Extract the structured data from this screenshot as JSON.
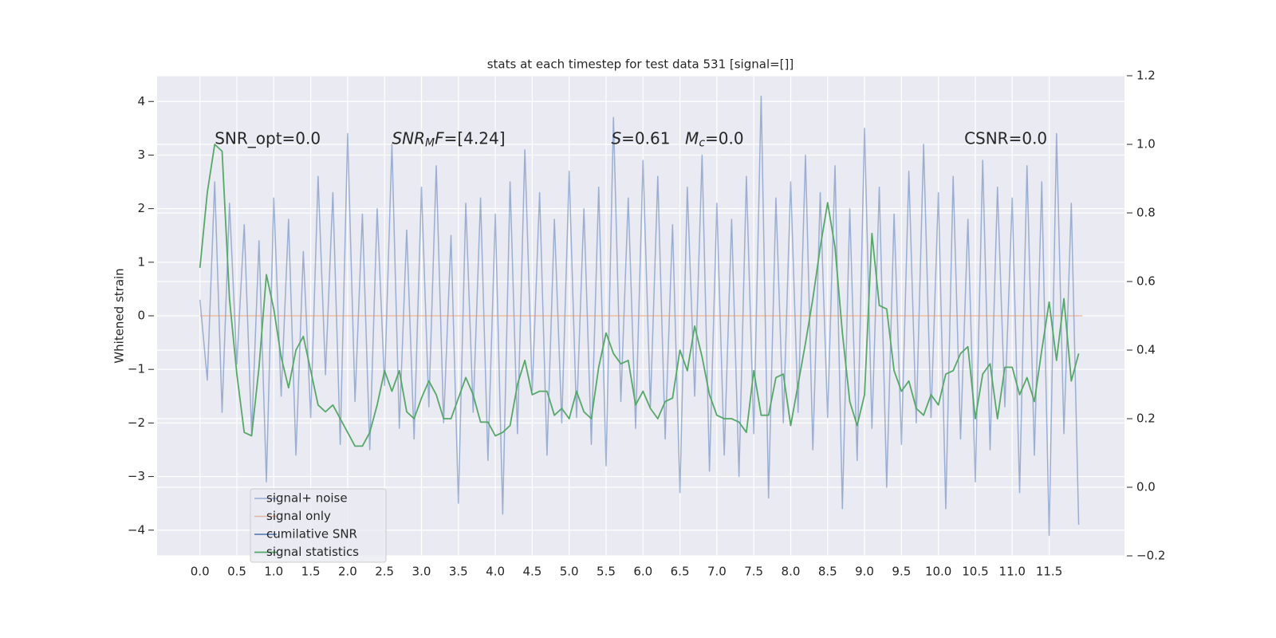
{
  "chart_data": {
    "type": "line",
    "title": "stats at each timestep for test data 531 [signal=[]]",
    "ylabel": "Whitened strain",
    "xlim": [
      -0.58,
      12.52
    ],
    "ylim": [
      -4.48,
      4.48
    ],
    "y2lim": [
      -0.2,
      1.2
    ],
    "xticks": [
      {
        "value": 0,
        "label": "0.0"
      },
      0.5,
      {
        "value": 1,
        "label": "1.0"
      },
      1.5,
      {
        "value": 2,
        "label": "2.0"
      },
      2.5,
      {
        "value": 3,
        "label": "3.0"
      },
      3.5,
      {
        "value": 4,
        "label": "4.0"
      },
      4.5,
      {
        "value": 5,
        "label": "5.0"
      },
      5.5,
      {
        "value": 6,
        "label": "6.0"
      },
      6.5,
      {
        "value": 7,
        "label": "7.0"
      },
      7.5,
      {
        "value": 8,
        "label": "8.0"
      },
      8.5,
      {
        "value": 9,
        "label": "9.0"
      },
      9.5,
      {
        "value": 10,
        "label": "10.0"
      },
      10.5,
      {
        "value": 11,
        "label": "11.0"
      },
      11.5
    ],
    "yticks": [
      {
        "value": -4,
        "label": "−4"
      },
      {
        "value": -3,
        "label": "−3"
      },
      {
        "value": -2,
        "label": "−2"
      },
      {
        "value": -1,
        "label": "−1"
      },
      0,
      1,
      2,
      3,
      4
    ],
    "y2ticks": [
      {
        "value": -0.2,
        "label": "−0.2"
      },
      {
        "value": 0,
        "label": "0.0"
      },
      0.2,
      0.4,
      0.6,
      0.8,
      {
        "value": 1,
        "label": "1.0"
      },
      1.2
    ],
    "grid": true,
    "legend": "lower left",
    "annotations": [
      {
        "x": 0.2,
        "y": 3.3,
        "parts": [
          {
            "text": "SNR_opt=0.0"
          }
        ]
      },
      {
        "x": 2.6,
        "y": 3.3,
        "parts": [
          {
            "text": "SNR",
            "italic": true
          },
          {
            "text": "M",
            "italic": true,
            "sub": true
          },
          {
            "text": "F",
            "italic": true
          },
          {
            "text": "=[4.24]"
          }
        ]
      },
      {
        "x": 5.57,
        "y": 3.3,
        "parts": [
          {
            "text": "S",
            "italic": true
          },
          {
            "text": "=0.61"
          }
        ]
      },
      {
        "x": 6.57,
        "y": 3.3,
        "parts": [
          {
            "text": "M",
            "italic": true
          },
          {
            "text": "c",
            "italic": true,
            "sub": true
          },
          {
            "text": "=0.0"
          }
        ]
      },
      {
        "x": 10.35,
        "y": 3.3,
        "parts": [
          {
            "text": "CSNR=0.0"
          }
        ]
      }
    ],
    "series": [
      {
        "name": "signal+ noise",
        "color": "#4c72b0",
        "alpha": 0.5,
        "width": 1.5,
        "x": [
          0,
          0.1,
          0.2,
          0.3,
          0.4,
          0.5,
          0.6,
          0.7,
          0.8,
          0.9,
          1,
          1.1,
          1.2,
          1.3,
          1.4,
          1.5,
          1.6,
          1.7,
          1.8,
          1.9,
          2,
          2.1,
          2.2,
          2.3,
          2.4,
          2.5,
          2.6,
          2.7,
          2.8,
          2.9,
          3,
          3.1,
          3.2,
          3.3,
          3.4,
          3.5,
          3.6,
          3.7,
          3.8,
          3.9,
          4,
          4.1,
          4.2,
          4.3,
          4.4,
          4.5,
          4.6,
          4.7,
          4.8,
          4.9,
          5,
          5.1,
          5.2,
          5.3,
          5.4,
          5.5,
          5.6,
          5.7,
          5.8,
          5.9,
          6,
          6.1,
          6.2,
          6.3,
          6.4,
          6.5,
          6.6,
          6.7,
          6.8,
          6.9,
          7,
          7.1,
          7.2,
          7.3,
          7.4,
          7.5,
          7.6,
          7.7,
          7.8,
          7.9,
          8,
          8.1,
          8.2,
          8.3,
          8.4,
          8.5,
          8.6,
          8.7,
          8.8,
          8.9,
          9,
          9.1,
          9.2,
          9.3,
          9.4,
          9.5,
          9.6,
          9.7,
          9.8,
          9.9,
          10,
          10.1,
          10.2,
          10.3,
          10.4,
          10.5,
          10.6,
          10.7,
          10.8,
          10.9,
          11,
          11.1,
          11.2,
          11.3,
          11.4,
          11.5,
          11.6,
          11.7,
          11.8,
          11.9
        ],
        "values": [
          0.3,
          -1.2,
          2.5,
          -1.8,
          2.1,
          -0.9,
          1.7,
          -2.2,
          1.4,
          -3.1,
          2.2,
          -1.5,
          1.8,
          -2.6,
          1.2,
          -1.9,
          2.6,
          -1.1,
          2.3,
          -2.4,
          3.4,
          -1.6,
          1.9,
          -2.5,
          2.0,
          -1.3,
          3.2,
          -2.1,
          1.6,
          -2.3,
          2.4,
          -1.7,
          2.8,
          -2.0,
          1.5,
          -3.5,
          2.1,
          -1.8,
          2.2,
          -2.7,
          1.9,
          -3.7,
          2.5,
          -2.2,
          3.1,
          -1.4,
          2.3,
          -2.6,
          1.8,
          -2.0,
          2.7,
          -1.9,
          2.0,
          -2.4,
          2.4,
          -2.8,
          3.7,
          -1.6,
          2.2,
          -2.1,
          2.9,
          -1.7,
          2.6,
          -2.3,
          1.7,
          -3.3,
          2.4,
          -1.5,
          3.0,
          -2.9,
          2.1,
          -2.6,
          1.8,
          -3.0,
          2.6,
          -2.2,
          4.1,
          -3.4,
          2.2,
          -2.0,
          2.5,
          -1.8,
          3.0,
          -2.5,
          2.3,
          -1.9,
          2.8,
          -3.6,
          2.0,
          -2.7,
          3.5,
          -2.1,
          2.4,
          -3.2,
          1.9,
          -2.4,
          2.7,
          -2.0,
          3.2,
          -1.9,
          2.3,
          -3.6,
          2.6,
          -2.3,
          1.8,
          -3.1,
          2.9,
          -2.5,
          2.4,
          -1.7,
          2.2,
          -3.3,
          2.8,
          -2.6,
          2.5,
          -4.1,
          3.4,
          -2.2,
          2.1,
          -3.9
        ]
      },
      {
        "name": "signal only",
        "color": "#dd8452",
        "alpha": 0.5,
        "width": 1.5,
        "x": [
          0,
          11.95
        ],
        "values": [
          0,
          0
        ]
      },
      {
        "name": "cumilative SNR",
        "color": "#4c72b0",
        "alpha": 1,
        "width": 1.5,
        "axis": "y2",
        "x": [],
        "values": []
      },
      {
        "name": "signal statistics",
        "color": "#55a868",
        "alpha": 1,
        "width": 1.8,
        "axis": "y2",
        "x": [
          0,
          0.1,
          0.2,
          0.3,
          0.4,
          0.5,
          0.6,
          0.7,
          0.8,
          0.9,
          1,
          1.1,
          1.2,
          1.3,
          1.4,
          1.5,
          1.6,
          1.7,
          1.8,
          1.9,
          2,
          2.1,
          2.2,
          2.3,
          2.4,
          2.5,
          2.6,
          2.7,
          2.8,
          2.9,
          3,
          3.1,
          3.2,
          3.3,
          3.4,
          3.5,
          3.6,
          3.7,
          3.8,
          3.9,
          4,
          4.1,
          4.2,
          4.3,
          4.4,
          4.5,
          4.6,
          4.7,
          4.8,
          4.9,
          5,
          5.1,
          5.2,
          5.3,
          5.4,
          5.5,
          5.6,
          5.7,
          5.8,
          5.9,
          6,
          6.1,
          6.2,
          6.3,
          6.4,
          6.5,
          6.6,
          6.7,
          6.8,
          6.9,
          7,
          7.1,
          7.2,
          7.3,
          7.4,
          7.5,
          7.6,
          7.7,
          7.8,
          7.9,
          8,
          8.1,
          8.2,
          8.3,
          8.4,
          8.5,
          8.6,
          8.7,
          8.8,
          8.9,
          9,
          9.1,
          9.2,
          9.3,
          9.4,
          9.5,
          9.6,
          9.7,
          9.8,
          9.9,
          10,
          10.1,
          10.2,
          10.3,
          10.4,
          10.5,
          10.6,
          10.7,
          10.8,
          10.9,
          11,
          11.1,
          11.2,
          11.3,
          11.4,
          11.5,
          11.6,
          11.7,
          11.8,
          11.9
        ],
        "values": [
          0.64,
          0.86,
          1.0,
          0.98,
          0.55,
          0.33,
          0.16,
          0.15,
          0.35,
          0.62,
          0.52,
          0.38,
          0.29,
          0.4,
          0.44,
          0.34,
          0.24,
          0.22,
          0.24,
          0.2,
          0.16,
          0.12,
          0.12,
          0.16,
          0.24,
          0.34,
          0.28,
          0.34,
          0.22,
          0.2,
          0.26,
          0.31,
          0.27,
          0.2,
          0.2,
          0.26,
          0.32,
          0.27,
          0.19,
          0.19,
          0.15,
          0.16,
          0.18,
          0.3,
          0.37,
          0.27,
          0.28,
          0.28,
          0.21,
          0.23,
          0.2,
          0.28,
          0.22,
          0.2,
          0.35,
          0.45,
          0.39,
          0.36,
          0.37,
          0.24,
          0.28,
          0.23,
          0.2,
          0.25,
          0.26,
          0.4,
          0.34,
          0.47,
          0.38,
          0.27,
          0.21,
          0.2,
          0.2,
          0.19,
          0.16,
          0.34,
          0.21,
          0.21,
          0.32,
          0.33,
          0.18,
          0.3,
          0.42,
          0.55,
          0.7,
          0.83,
          0.7,
          0.45,
          0.25,
          0.18,
          0.27,
          0.74,
          0.53,
          0.52,
          0.34,
          0.28,
          0.31,
          0.23,
          0.21,
          0.27,
          0.24,
          0.33,
          0.34,
          0.39,
          0.41,
          0.2,
          0.33,
          0.36,
          0.2,
          0.35,
          0.35,
          0.27,
          0.32,
          0.25,
          0.4,
          0.54,
          0.37,
          0.55,
          0.31,
          0.39
        ]
      }
    ]
  }
}
